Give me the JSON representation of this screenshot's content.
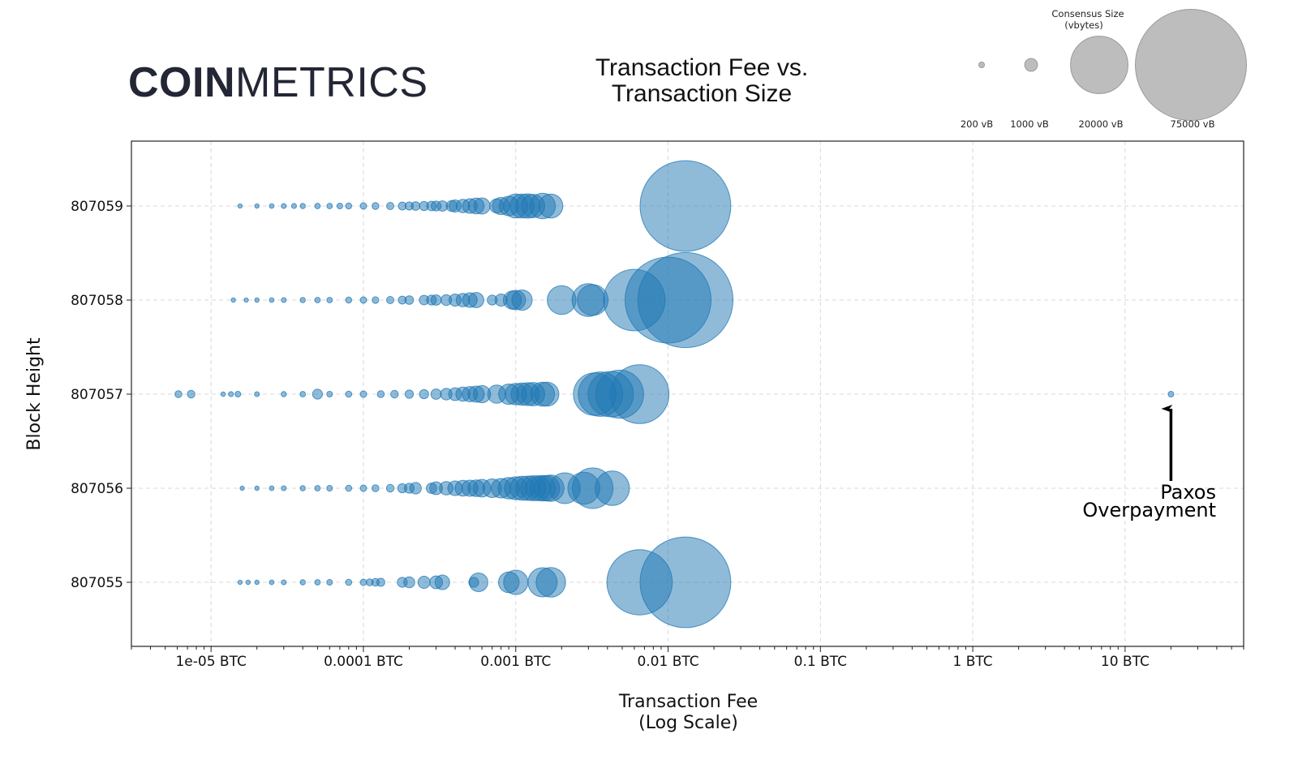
{
  "brand": {
    "logo_bold": "COIN",
    "logo_light": "METRICS"
  },
  "chart_data": {
    "type": "scatter",
    "title_lines": [
      "Transaction Fee vs.",
      "Transaction Size"
    ],
    "xlabel_lines": [
      "Transaction Fee",
      "(Log Scale)"
    ],
    "ylabel": "Block Height",
    "x_scale": "log",
    "xlim": [
      3e-06,
      60
    ],
    "x_ticks": [
      1e-05,
      0.0001,
      0.001,
      0.01,
      0.1,
      1,
      10
    ],
    "x_tick_labels": [
      "1e-05 BTC",
      "0.0001 BTC",
      "0.001 BTC",
      "0.01 BTC",
      "0.1 BTC",
      "1 BTC",
      "10 BTC"
    ],
    "y_categories": [
      "807059",
      "807058",
      "807057",
      "807056",
      "807055"
    ],
    "grid": true,
    "point_color": "#1f77b4",
    "size_legend": {
      "title_lines": [
        "Consensus Size",
        "(vbytes)"
      ],
      "entries": [
        {
          "label": "200 vB",
          "vbytes": 200
        },
        {
          "label": "1000 vB",
          "vbytes": 1000
        },
        {
          "label": "20000 vB",
          "vbytes": 20000
        },
        {
          "label": "75000 vB",
          "vbytes": 75000
        }
      ]
    },
    "annotation": {
      "text_lines": [
        "Paxos",
        "Overpayment"
      ],
      "x": 20,
      "y": "807057"
    },
    "series": [
      {
        "block": "807059",
        "points": [
          {
            "fee": 1.55e-05,
            "size": 110
          },
          {
            "fee": 2e-05,
            "size": 120
          },
          {
            "fee": 2.5e-05,
            "size": 130
          },
          {
            "fee": 3e-05,
            "size": 140
          },
          {
            "fee": 3.5e-05,
            "size": 150
          },
          {
            "fee": 4e-05,
            "size": 160
          },
          {
            "fee": 5e-05,
            "size": 180
          },
          {
            "fee": 6e-05,
            "size": 190
          },
          {
            "fee": 7e-05,
            "size": 200
          },
          {
            "fee": 8e-05,
            "size": 220
          },
          {
            "fee": 0.0001,
            "size": 250
          },
          {
            "fee": 0.00012,
            "size": 280
          },
          {
            "fee": 0.00015,
            "size": 330
          },
          {
            "fee": 0.00018,
            "size": 380
          },
          {
            "fee": 0.0002,
            "size": 400
          },
          {
            "fee": 0.00022,
            "size": 450
          },
          {
            "fee": 0.00025,
            "size": 500
          },
          {
            "fee": 0.00028,
            "size": 550
          },
          {
            "fee": 0.0003,
            "size": 600
          },
          {
            "fee": 0.00033,
            "size": 650
          },
          {
            "fee": 0.00038,
            "size": 750
          },
          {
            "fee": 0.0004,
            "size": 900
          },
          {
            "fee": 0.00045,
            "size": 1100
          },
          {
            "fee": 0.0005,
            "size": 1300
          },
          {
            "fee": 0.00055,
            "size": 1500
          },
          {
            "fee": 0.0006,
            "size": 1600
          },
          {
            "fee": 0.00075,
            "size": 1200
          },
          {
            "fee": 0.0008,
            "size": 1800
          },
          {
            "fee": 0.0009,
            "size": 2300
          },
          {
            "fee": 0.001,
            "size": 3500
          },
          {
            "fee": 0.0011,
            "size": 3500
          },
          {
            "fee": 0.0012,
            "size": 3600
          },
          {
            "fee": 0.0013,
            "size": 3300
          },
          {
            "fee": 0.0015,
            "size": 4000
          },
          {
            "fee": 0.0017,
            "size": 3500
          },
          {
            "fee": 0.013,
            "size": 50000
          }
        ]
      },
      {
        "block": "807058",
        "points": [
          {
            "fee": 1.4e-05,
            "size": 120
          },
          {
            "fee": 1.7e-05,
            "size": 110
          },
          {
            "fee": 2e-05,
            "size": 120
          },
          {
            "fee": 2.5e-05,
            "size": 130
          },
          {
            "fee": 3e-05,
            "size": 140
          },
          {
            "fee": 4e-05,
            "size": 160
          },
          {
            "fee": 5e-05,
            "size": 180
          },
          {
            "fee": 6e-05,
            "size": 190
          },
          {
            "fee": 8e-05,
            "size": 220
          },
          {
            "fee": 0.0001,
            "size": 250
          },
          {
            "fee": 0.00012,
            "size": 270
          },
          {
            "fee": 0.00015,
            "size": 330
          },
          {
            "fee": 0.00018,
            "size": 380
          },
          {
            "fee": 0.0002,
            "size": 450
          },
          {
            "fee": 0.00025,
            "size": 550
          },
          {
            "fee": 0.00028,
            "size": 600
          },
          {
            "fee": 0.0003,
            "size": 650
          },
          {
            "fee": 0.00035,
            "size": 700
          },
          {
            "fee": 0.0004,
            "size": 900
          },
          {
            "fee": 0.00045,
            "size": 1100
          },
          {
            "fee": 0.0005,
            "size": 1300
          },
          {
            "fee": 0.00055,
            "size": 1400
          },
          {
            "fee": 0.0007,
            "size": 600
          },
          {
            "fee": 0.0008,
            "size": 900
          },
          {
            "fee": 0.00095,
            "size": 2000
          },
          {
            "fee": 0.001,
            "size": 2300
          },
          {
            "fee": 0.0011,
            "size": 2500
          },
          {
            "fee": 0.002,
            "size": 5000
          },
          {
            "fee": 0.003,
            "size": 6500
          },
          {
            "fee": 0.0032,
            "size": 5800
          },
          {
            "fee": 0.006,
            "size": 23000
          },
          {
            "fee": 0.01,
            "size": 45000
          },
          {
            "fee": 0.013,
            "size": 55000
          }
        ]
      },
      {
        "block": "807057",
        "points": [
          {
            "fee": 6.1e-06,
            "size": 300
          },
          {
            "fee": 7.4e-06,
            "size": 350
          },
          {
            "fee": 1.2e-05,
            "size": 120
          },
          {
            "fee": 1.35e-05,
            "size": 150
          },
          {
            "fee": 1.5e-05,
            "size": 200
          },
          {
            "fee": 2e-05,
            "size": 140
          },
          {
            "fee": 3e-05,
            "size": 160
          },
          {
            "fee": 4e-05,
            "size": 180
          },
          {
            "fee": 5e-05,
            "size": 600
          },
          {
            "fee": 6e-05,
            "size": 200
          },
          {
            "fee": 8e-05,
            "size": 230
          },
          {
            "fee": 0.0001,
            "size": 260
          },
          {
            "fee": 0.00013,
            "size": 300
          },
          {
            "fee": 0.00016,
            "size": 350
          },
          {
            "fee": 0.0002,
            "size": 420
          },
          {
            "fee": 0.00025,
            "size": 500
          },
          {
            "fee": 0.0003,
            "size": 650
          },
          {
            "fee": 0.00035,
            "size": 800
          },
          {
            "fee": 0.0004,
            "size": 1000
          },
          {
            "fee": 0.00045,
            "size": 1200
          },
          {
            "fee": 0.0005,
            "size": 1400
          },
          {
            "fee": 0.00055,
            "size": 1600
          },
          {
            "fee": 0.0006,
            "size": 1800
          },
          {
            "fee": 0.00075,
            "size": 2000
          },
          {
            "fee": 0.0009,
            "size": 2500
          },
          {
            "fee": 0.001,
            "size": 2800
          },
          {
            "fee": 0.0011,
            "size": 3000
          },
          {
            "fee": 0.0012,
            "size": 3200
          },
          {
            "fee": 0.0013,
            "size": 3300
          },
          {
            "fee": 0.0015,
            "size": 3500
          },
          {
            "fee": 0.0016,
            "size": 3500
          },
          {
            "fee": 0.0033,
            "size": 11000
          },
          {
            "fee": 0.0036,
            "size": 12000
          },
          {
            "fee": 0.0042,
            "size": 12500
          },
          {
            "fee": 0.0048,
            "size": 14000
          },
          {
            "fee": 0.0065,
            "size": 21000
          },
          {
            "fee": 20,
            "size": 200
          }
        ]
      },
      {
        "block": "807056",
        "points": [
          {
            "fee": 1.6e-05,
            "size": 110
          },
          {
            "fee": 2e-05,
            "size": 120
          },
          {
            "fee": 2.5e-05,
            "size": 130
          },
          {
            "fee": 3e-05,
            "size": 140
          },
          {
            "fee": 4e-05,
            "size": 160
          },
          {
            "fee": 5e-05,
            "size": 180
          },
          {
            "fee": 6e-05,
            "size": 200
          },
          {
            "fee": 8e-05,
            "size": 230
          },
          {
            "fee": 0.0001,
            "size": 260
          },
          {
            "fee": 0.00012,
            "size": 300
          },
          {
            "fee": 0.00015,
            "size": 350
          },
          {
            "fee": 0.00018,
            "size": 500
          },
          {
            "fee": 0.0002,
            "size": 600
          },
          {
            "fee": 0.00022,
            "size": 800
          },
          {
            "fee": 0.00028,
            "size": 650
          },
          {
            "fee": 0.0003,
            "size": 1000
          },
          {
            "fee": 0.00035,
            "size": 1100
          },
          {
            "fee": 0.0004,
            "size": 1300
          },
          {
            "fee": 0.00045,
            "size": 1500
          },
          {
            "fee": 0.0005,
            "size": 1600
          },
          {
            "fee": 0.00055,
            "size": 1700
          },
          {
            "fee": 0.0006,
            "size": 1900
          },
          {
            "fee": 0.0007,
            "size": 2100
          },
          {
            "fee": 0.0008,
            "size": 2300
          },
          {
            "fee": 0.0009,
            "size": 2800
          },
          {
            "fee": 0.001,
            "size": 3200
          },
          {
            "fee": 0.0011,
            "size": 3500
          },
          {
            "fee": 0.0012,
            "size": 3600
          },
          {
            "fee": 0.0013,
            "size": 3800
          },
          {
            "fee": 0.0014,
            "size": 3800
          },
          {
            "fee": 0.0015,
            "size": 4000
          },
          {
            "fee": 0.0016,
            "size": 4000
          },
          {
            "fee": 0.0017,
            "size": 4200
          },
          {
            "fee": 0.0021,
            "size": 5800
          },
          {
            "fee": 0.0028,
            "size": 6200
          },
          {
            "fee": 0.0032,
            "size": 10000
          },
          {
            "fee": 0.0043,
            "size": 7200
          }
        ]
      },
      {
        "block": "807055",
        "points": [
          {
            "fee": 1.55e-05,
            "size": 110
          },
          {
            "fee": 1.75e-05,
            "size": 120
          },
          {
            "fee": 2e-05,
            "size": 120
          },
          {
            "fee": 2.5e-05,
            "size": 130
          },
          {
            "fee": 3e-05,
            "size": 140
          },
          {
            "fee": 4e-05,
            "size": 160
          },
          {
            "fee": 5e-05,
            "size": 180
          },
          {
            "fee": 6e-05,
            "size": 200
          },
          {
            "fee": 8e-05,
            "size": 230
          },
          {
            "fee": 0.0001,
            "size": 260
          },
          {
            "fee": 0.00011,
            "size": 300
          },
          {
            "fee": 0.00012,
            "size": 350
          },
          {
            "fee": 0.00013,
            "size": 400
          },
          {
            "fee": 0.00018,
            "size": 600
          },
          {
            "fee": 0.0002,
            "size": 750
          },
          {
            "fee": 0.00025,
            "size": 900
          },
          {
            "fee": 0.0003,
            "size": 1000
          },
          {
            "fee": 0.00033,
            "size": 1300
          },
          {
            "fee": 0.00053,
            "size": 600
          },
          {
            "fee": 0.00057,
            "size": 2100
          },
          {
            "fee": 0.0009,
            "size": 2600
          },
          {
            "fee": 0.001,
            "size": 3600
          },
          {
            "fee": 0.0015,
            "size": 5200
          },
          {
            "fee": 0.0017,
            "size": 5300
          },
          {
            "fee": 0.0065,
            "size": 26000
          },
          {
            "fee": 0.013,
            "size": 50000
          }
        ]
      }
    ]
  }
}
